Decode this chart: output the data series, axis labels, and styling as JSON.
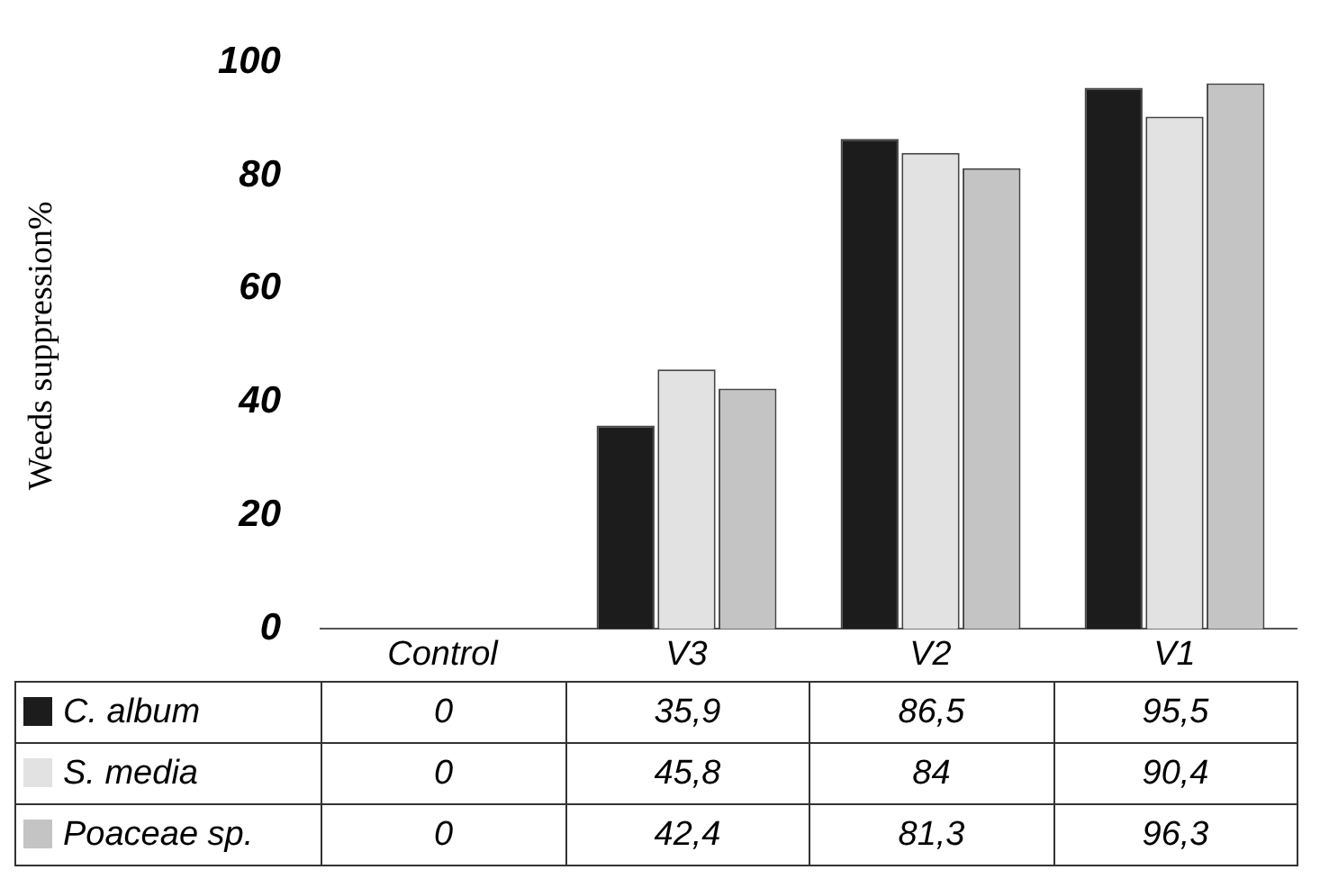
{
  "chart_data": {
    "type": "bar",
    "ylabel": "Weeds suppression%",
    "categories": [
      "Control",
      "V3",
      "V2",
      "V1"
    ],
    "series": [
      {
        "name": "C. album",
        "color": "#1c1c1c",
        "values": [
          0,
          35.9,
          86.5,
          95.5
        ],
        "value_labels": [
          "0",
          "35,9",
          "86,5",
          "95,5"
        ]
      },
      {
        "name": "S. media",
        "color": "#e2e2e2",
        "values": [
          0,
          45.8,
          84,
          90.4
        ],
        "value_labels": [
          "0",
          "45,8",
          "84",
          "90,4"
        ]
      },
      {
        "name": "Poaceae sp.",
        "color": "#c4c4c4",
        "values": [
          0,
          42.4,
          81.3,
          96.3
        ],
        "value_labels": [
          "0",
          "42,4",
          "81,3",
          "96,3"
        ]
      }
    ],
    "ylim": [
      0,
      100
    ],
    "yticks": [
      0,
      20,
      40,
      60,
      80,
      100
    ],
    "grid": false,
    "legend": "bottom left"
  }
}
